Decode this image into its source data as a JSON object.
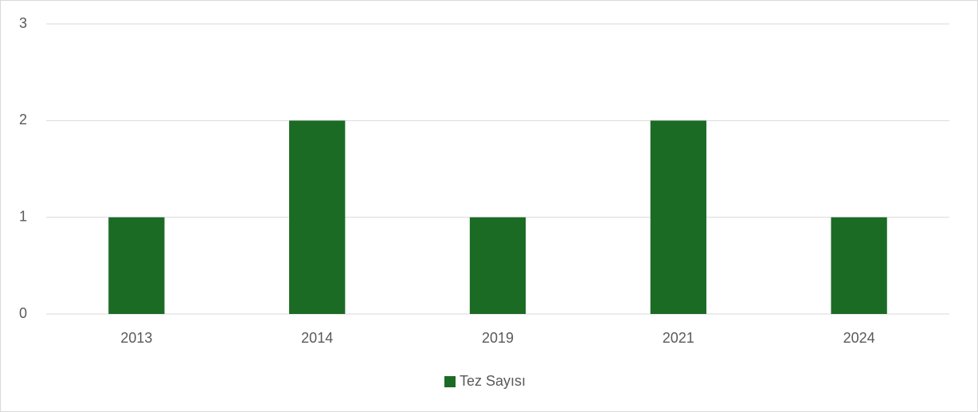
{
  "chart_data": {
    "type": "bar",
    "categories": [
      "2013",
      "2014",
      "2019",
      "2021",
      "2024"
    ],
    "series": [
      {
        "name": "Tez Sayısı",
        "color": "#1b6b25",
        "values": [
          1,
          2,
          1,
          2,
          1
        ]
      }
    ],
    "ylim": [
      0,
      3
    ],
    "yticks": [
      0,
      1,
      2,
      3
    ],
    "grid": true,
    "legend": "bottom"
  }
}
